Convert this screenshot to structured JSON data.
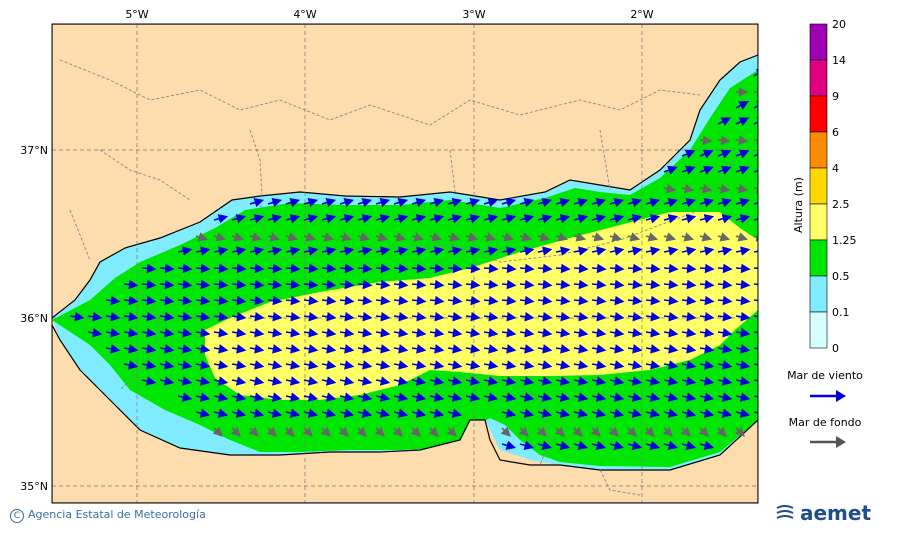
{
  "map": {
    "lon_labels": [
      "5°W",
      "4°W",
      "3°W",
      "2°W"
    ],
    "lat_labels": [
      "37°N",
      "36°N",
      "35°N"
    ]
  },
  "colorbar": {
    "title": "Altura (m)",
    "levels": [
      "20",
      "14",
      "9",
      "6",
      "4",
      "2.5",
      "1.25",
      "0.5",
      "0.1",
      "0"
    ],
    "colors": [
      "#a000b4",
      "#e00080",
      "#ff0000",
      "#ff8c00",
      "#ffd700",
      "#ffff66",
      "#00e600",
      "#80ecff",
      "#d6ffff"
    ]
  },
  "legend": {
    "wind_sea_label": "Mar de viento",
    "wind_sea_color": "#0000dd",
    "swell_label": "Mar de fondo",
    "swell_color": "#555555"
  },
  "footer": {
    "credit": "Agencia Estatal de Meteorología",
    "logo_text": "aemet"
  },
  "colors": {
    "land": "#fddcae",
    "sea_green": "#00e600",
    "sea_yellow": "#ffff66",
    "sea_cyan": "#80ecff"
  }
}
